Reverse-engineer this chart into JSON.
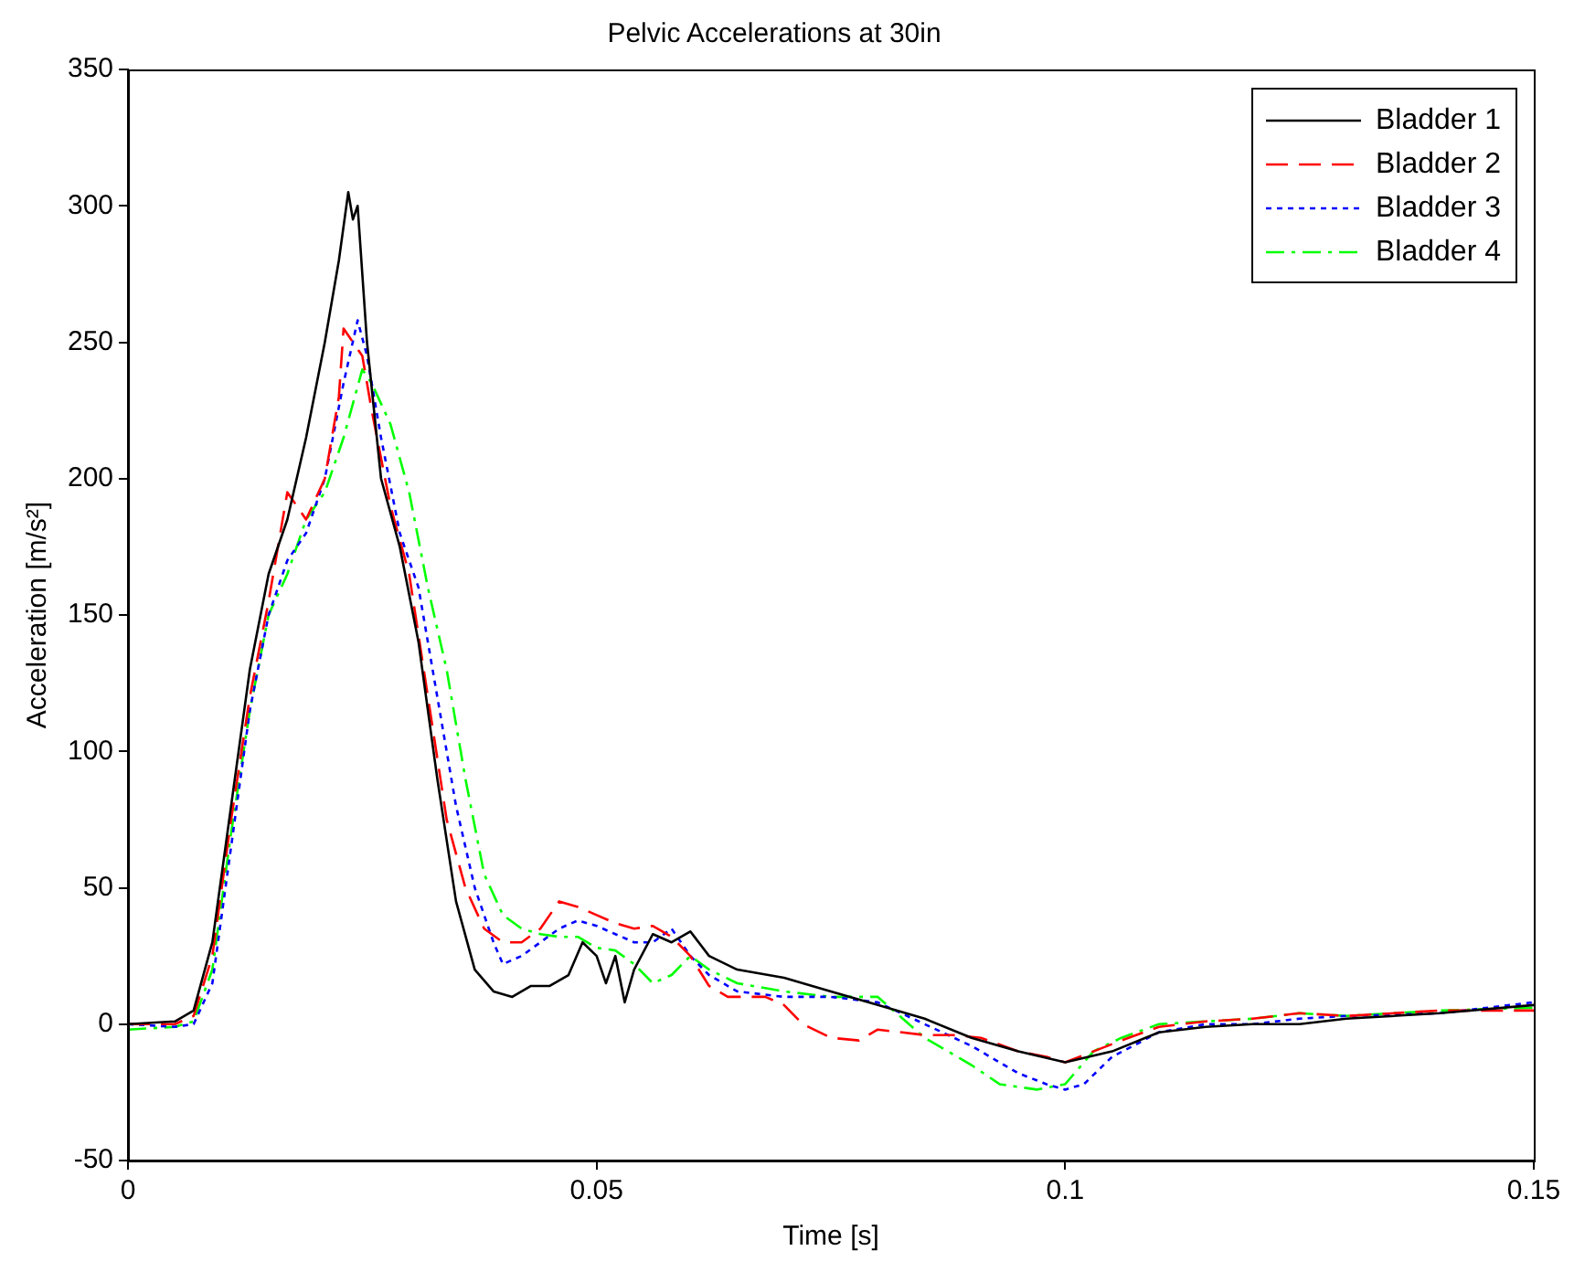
{
  "chart_data": {
    "type": "line",
    "title": "Pelvic Accelerations at 30in",
    "xlabel": "Time [s]",
    "ylabel": "Acceleration [m/s²]",
    "xlim": [
      0,
      0.15
    ],
    "xticks": [
      0,
      0.05,
      0.1,
      0.15
    ],
    "ylim": [
      -50,
      350
    ],
    "yticks": [
      -50,
      0,
      50,
      100,
      150,
      200,
      250,
      300,
      350
    ],
    "grid": false,
    "legend": "top right",
    "marker": "none",
    "series": [
      {
        "name": "Bladder 1",
        "color": "#000000",
        "line_style": "solid",
        "x": [
          0,
          0.005,
          0.007,
          0.009,
          0.011,
          0.013,
          0.015,
          0.017,
          0.019,
          0.021,
          0.0225,
          0.0235,
          0.024,
          0.0245,
          0.0255,
          0.027,
          0.029,
          0.031,
          0.033,
          0.035,
          0.037,
          0.039,
          0.041,
          0.043,
          0.045,
          0.047,
          0.0485,
          0.05,
          0.051,
          0.052,
          0.053,
          0.054,
          0.056,
          0.058,
          0.06,
          0.062,
          0.065,
          0.07,
          0.075,
          0.08,
          0.085,
          0.09,
          0.095,
          0.1,
          0.105,
          0.11,
          0.115,
          0.12,
          0.125,
          0.13,
          0.14,
          0.15
        ],
        "values": [
          0,
          1,
          5,
          30,
          80,
          130,
          165,
          185,
          215,
          250,
          280,
          305,
          295,
          300,
          250,
          200,
          175,
          140,
          90,
          45,
          20,
          12,
          10,
          14,
          14,
          18,
          30,
          25,
          15,
          25,
          8,
          20,
          33,
          30,
          34,
          25,
          20,
          17,
          12,
          7,
          2,
          -5,
          -10,
          -14,
          -10,
          -3,
          -1,
          0,
          0,
          2,
          4,
          7
        ]
      },
      {
        "name": "Bladder 2",
        "color": "#ff0000",
        "line_style": "dashed",
        "x": [
          0,
          0.005,
          0.007,
          0.009,
          0.011,
          0.013,
          0.015,
          0.017,
          0.019,
          0.021,
          0.0225,
          0.023,
          0.024,
          0.025,
          0.026,
          0.028,
          0.03,
          0.032,
          0.034,
          0.036,
          0.038,
          0.04,
          0.042,
          0.044,
          0.046,
          0.048,
          0.05,
          0.052,
          0.054,
          0.056,
          0.058,
          0.06,
          0.062,
          0.064,
          0.066,
          0.068,
          0.07,
          0.072,
          0.075,
          0.078,
          0.08,
          0.085,
          0.088,
          0.091,
          0.095,
          0.098,
          0.1,
          0.103,
          0.106,
          0.11,
          0.115,
          0.12,
          0.125,
          0.13,
          0.14,
          0.15
        ],
        "values": [
          0,
          0,
          3,
          25,
          75,
          120,
          155,
          195,
          185,
          200,
          230,
          255,
          250,
          245,
          225,
          190,
          165,
          120,
          75,
          50,
          35,
          30,
          30,
          35,
          45,
          43,
          40,
          37,
          35,
          36,
          32,
          25,
          14,
          10,
          10,
          10,
          7,
          0,
          -5,
          -6,
          -2,
          -4,
          -4,
          -5,
          -10,
          -12,
          -14,
          -10,
          -6,
          -1,
          1,
          2,
          4,
          3,
          5,
          5
        ]
      },
      {
        "name": "Bladder 3",
        "color": "#0000ff",
        "line_style": "dotted",
        "x": [
          0,
          0.005,
          0.007,
          0.009,
          0.011,
          0.013,
          0.015,
          0.017,
          0.019,
          0.021,
          0.023,
          0.0245,
          0.0255,
          0.027,
          0.029,
          0.031,
          0.033,
          0.035,
          0.037,
          0.039,
          0.04,
          0.042,
          0.044,
          0.046,
          0.048,
          0.05,
          0.052,
          0.054,
          0.056,
          0.058,
          0.06,
          0.062,
          0.065,
          0.07,
          0.075,
          0.08,
          0.085,
          0.09,
          0.095,
          0.098,
          0.1,
          0.102,
          0.105,
          0.11,
          0.115,
          0.12,
          0.125,
          0.13,
          0.14,
          0.15
        ],
        "values": [
          0,
          -1,
          0,
          15,
          65,
          115,
          150,
          170,
          180,
          200,
          235,
          258,
          245,
          215,
          180,
          160,
          120,
          80,
          50,
          30,
          22,
          25,
          30,
          35,
          38,
          36,
          33,
          30,
          30,
          35,
          25,
          18,
          12,
          10,
          10,
          8,
          0,
          -8,
          -18,
          -22,
          -24,
          -22,
          -12,
          -3,
          0,
          0,
          2,
          3,
          4,
          8
        ]
      },
      {
        "name": "Bladder 4",
        "color": "#00ff00",
        "line_style": "dashdot",
        "x": [
          0,
          0.005,
          0.007,
          0.009,
          0.011,
          0.013,
          0.015,
          0.017,
          0.019,
          0.021,
          0.023,
          0.025,
          0.026,
          0.028,
          0.03,
          0.032,
          0.034,
          0.036,
          0.038,
          0.04,
          0.042,
          0.044,
          0.046,
          0.048,
          0.05,
          0.052,
          0.054,
          0.056,
          0.058,
          0.06,
          0.062,
          0.065,
          0.07,
          0.075,
          0.08,
          0.085,
          0.09,
          0.093,
          0.097,
          0.1,
          0.103,
          0.106,
          0.11,
          0.115,
          0.12,
          0.125,
          0.13,
          0.14,
          0.15
        ],
        "values": [
          -2,
          -1,
          1,
          20,
          70,
          115,
          150,
          165,
          185,
          195,
          215,
          240,
          235,
          220,
          195,
          160,
          130,
          90,
          55,
          40,
          35,
          33,
          32,
          32,
          28,
          27,
          22,
          15,
          18,
          25,
          20,
          15,
          12,
          10,
          10,
          -5,
          -15,
          -22,
          -24,
          -22,
          -10,
          -5,
          0,
          1,
          2,
          4,
          3,
          5,
          6
        ]
      }
    ]
  }
}
